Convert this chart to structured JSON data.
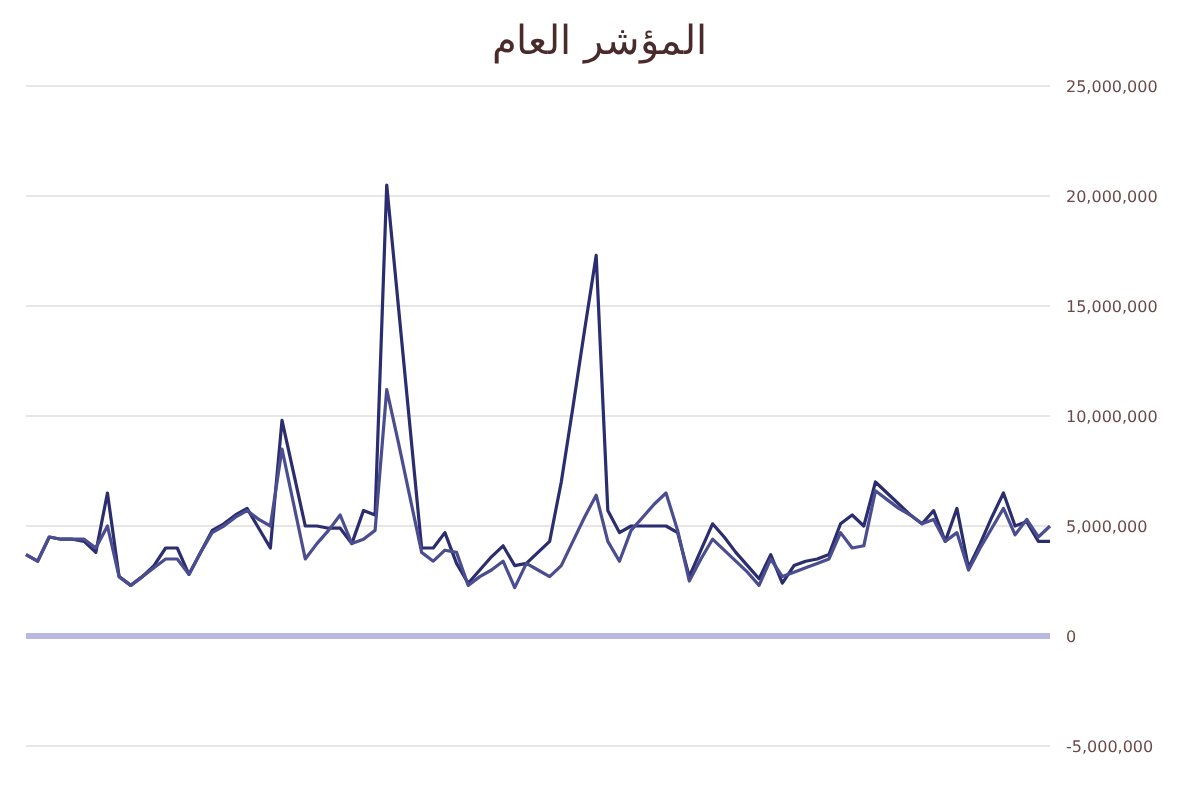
{
  "chart_data": {
    "type": "line",
    "title": "المؤشر العام",
    "categories": [
      null,
      null,
      null,
      null,
      null,
      null,
      null,
      null,
      null,
      null,
      null,
      null,
      null,
      null,
      null,
      null,
      null,
      null,
      null,
      null,
      null,
      null,
      null,
      null,
      null,
      null,
      null,
      null,
      null,
      null,
      null,
      null,
      null,
      null,
      null,
      null,
      null,
      null,
      null,
      null,
      null,
      null,
      null,
      null,
      null,
      null,
      null,
      null,
      null,
      null,
      null,
      null,
      null,
      null,
      null,
      null,
      null,
      null,
      null,
      null,
      null,
      null,
      null,
      null,
      null,
      null,
      null,
      null,
      null,
      null,
      null,
      null,
      null,
      null,
      null,
      null,
      null,
      null,
      null,
      null,
      null,
      null,
      null,
      null,
      null,
      null,
      null,
      null,
      null
    ],
    "series": [
      {
        "color": "#2b2d6e",
        "values": [
          3700000,
          3400000,
          4500000,
          4400000,
          4400000,
          4300000,
          3800000,
          6500000,
          2700000,
          2300000,
          2700000,
          3200000,
          4000000,
          4000000,
          2800000,
          3800000,
          4800000,
          5100000,
          5500000,
          5800000,
          4900000,
          4000000,
          9800000,
          7400000,
          5000000,
          5000000,
          4900000,
          4900000,
          4200000,
          5700000,
          5500000,
          20500000,
          15000000,
          9500000,
          4000000,
          4000000,
          4700000,
          3300000,
          2400000,
          3000000,
          3600000,
          4100000,
          3200000,
          3300000,
          3800000,
          4300000,
          7000000,
          10400000,
          13900000,
          17300000,
          5700000,
          4700000,
          5000000,
          5000000,
          5000000,
          5000000,
          4700000,
          2700000,
          3900000,
          5100000,
          4500000,
          3800000,
          3200000,
          2600000,
          3700000,
          2400000,
          3200000,
          3400000,
          3500000,
          3700000,
          5100000,
          5500000,
          5000000,
          7000000,
          6500000,
          6000000,
          5500000,
          5100000,
          5700000,
          4300000,
          5800000,
          3100000,
          4200000,
          5400000,
          6500000,
          5000000,
          5200000,
          4300000,
          4300000
        ]
      },
      {
        "color": "#4a4d8f",
        "values": [
          3700000,
          3400000,
          4500000,
          4400000,
          4400000,
          4400000,
          4000000,
          5000000,
          2700000,
          2300000,
          2700000,
          3100000,
          3500000,
          3500000,
          2800000,
          3800000,
          4700000,
          5000000,
          5400000,
          5700000,
          5300000,
          5000000,
          8500000,
          6000000,
          3500000,
          4200000,
          4800000,
          5500000,
          4200000,
          4400000,
          4800000,
          11200000,
          8800000,
          6300000,
          3800000,
          3400000,
          3900000,
          3800000,
          2300000,
          2700000,
          3000000,
          3400000,
          2200000,
          3300000,
          3000000,
          2700000,
          3200000,
          4300000,
          5400000,
          6400000,
          4300000,
          3400000,
          4800000,
          5400000,
          6000000,
          6500000,
          4800000,
          2500000,
          3500000,
          4400000,
          3900000,
          3400000,
          2900000,
          2300000,
          3500000,
          2700000,
          2900000,
          3100000,
          3300000,
          3500000,
          4700000,
          4000000,
          4100000,
          6600000,
          6200000,
          5800000,
          5500000,
          5100000,
          5300000,
          4300000,
          4700000,
          3000000,
          4000000,
          4900000,
          5800000,
          4600000,
          5300000,
          4500000,
          5000000
        ]
      }
    ],
    "ylim": [
      -5000000,
      25000000
    ],
    "yticks": [
      {
        "value": -5000000,
        "label": "-5,000,000"
      },
      0,
      {
        "value": 5000000,
        "label": "5,000,000"
      },
      {
        "value": 10000000,
        "label": "10,000,000"
      },
      {
        "value": 15000000,
        "label": "15,000,000"
      },
      {
        "value": 20000000,
        "label": "20,000,000"
      },
      {
        "value": 25000000,
        "label": "25,000,000"
      }
    ],
    "tick_labels": "y",
    "grid": "y",
    "marker": "none",
    "line_style": "solid"
  }
}
